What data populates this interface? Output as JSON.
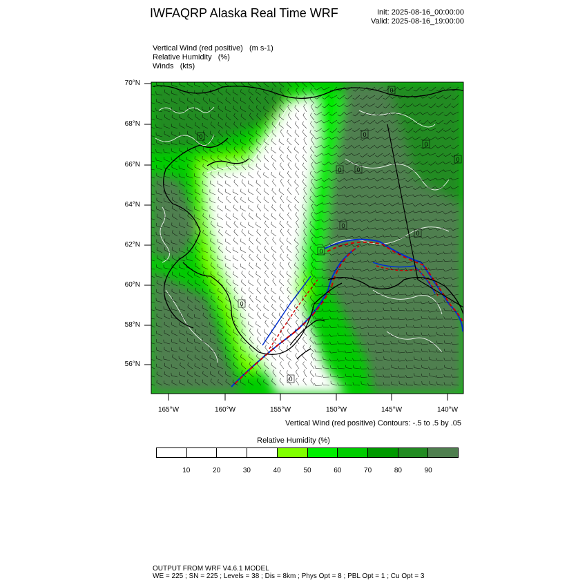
{
  "header": {
    "title": "IWFAQRP Alaska Real Time WRF",
    "init": "Init: 2025-08-16_00:00:00",
    "valid": "Valid: 2025-08-16_19:00:00"
  },
  "fields": [
    "Vertical Wind (red positive)   (m s-1)",
    "Relative Humidity   (%)",
    "Winds   (kts)"
  ],
  "axes": {
    "lat_labels": [
      "70°N",
      "68°N",
      "66°N",
      "64°N",
      "62°N",
      "60°N",
      "58°N",
      "56°N"
    ],
    "lon_labels": [
      "165°W",
      "160°W",
      "155°W",
      "150°W",
      "145°W",
      "140°W"
    ]
  },
  "contour_note": "Vertical Wind (red positive) Contours: -.5 to .5 by .05",
  "colorbar": {
    "title": "Relative Humidity  (%)",
    "colors": [
      "#ffffff",
      "#ffffff",
      "#ffffff",
      "#ffffff",
      "#80ff00",
      "#00ee00",
      "#00cc00",
      "#009900",
      "#228b22",
      "#4f7f4f"
    ],
    "labels": [
      "10",
      "20",
      "30",
      "40",
      "50",
      "60",
      "70",
      "80",
      "90"
    ]
  },
  "map_colors": {
    "ocean_shade": "#4f7f4f",
    "high_rh": "#00cc00",
    "mid_rh": "#00ee00",
    "low_rh": "#80ff00",
    "dry": "#ffffff",
    "updraft": "#d00000",
    "downdraft": "#0030d0"
  },
  "contour_labels": [
    "0",
    "0",
    "0",
    "0",
    "0",
    "0",
    "0",
    "0",
    "0",
    "0",
    "0",
    "0"
  ],
  "footer": {
    "line1": "OUTPUT FROM WRF V4.6.1 MODEL",
    "line2": "WE = 225 ; SN = 225 ; Levels = 38 ; Dis = 8km ; Phys Opt = 8 ; PBL Opt = 1 ; Cu Opt = 3"
  }
}
